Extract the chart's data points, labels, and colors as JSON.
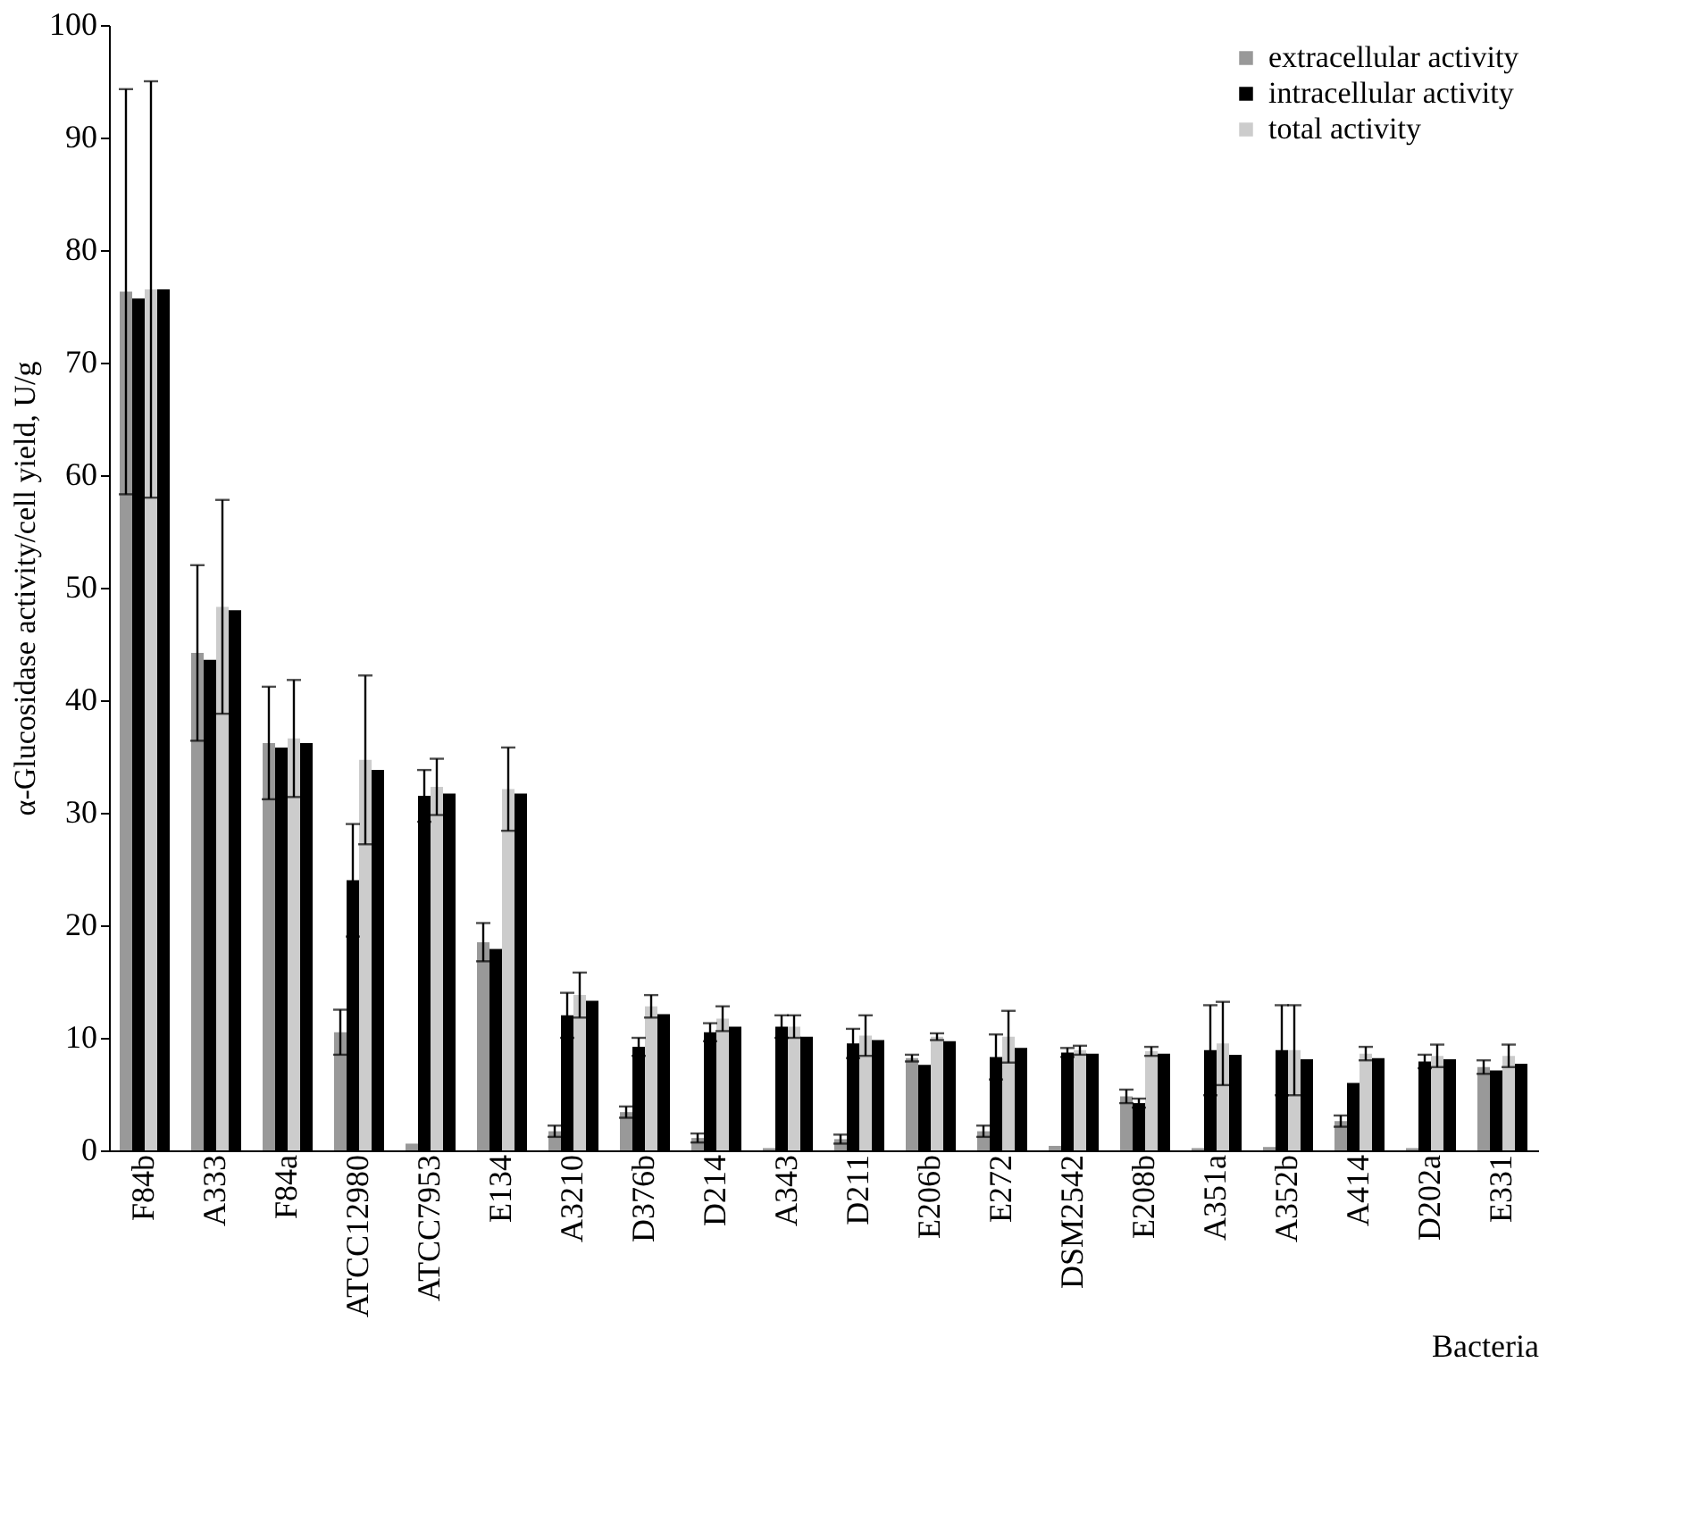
{
  "chart_data": {
    "type": "bar",
    "xlabel": "Bacteria",
    "ylabel": "α-Glucosidase activity/cell yield, U/g",
    "categories": [
      "F84b",
      "A333",
      "F84a",
      "ATCC12980",
      "ATCC7953",
      "E134",
      "A3210",
      "D376b",
      "D214",
      "A343",
      "D211",
      "E206b",
      "E272",
      "DSM2542",
      "E208b",
      "A351a",
      "A352b",
      "A414",
      "D202a",
      "E331"
    ],
    "series": [
      {
        "name": "extracellular activity",
        "color": "#999999",
        "values": [
          76.3,
          44.2,
          36.2,
          10.5,
          0.6,
          18.5,
          1.7,
          3.4,
          1.1,
          0.2,
          1.0,
          8.2,
          1.7,
          0.4,
          4.8,
          0.2,
          0.3,
          2.6,
          0.2,
          7.4
        ],
        "errors": [
          18,
          7.8,
          5,
          2,
          null,
          1.7,
          0.5,
          0.5,
          0.4,
          null,
          0.4,
          0.3,
          0.5,
          null,
          0.6,
          null,
          null,
          0.5,
          null,
          0.6
        ]
      },
      {
        "name": "intracellular activity",
        "color": "#000000",
        "values": [
          75.7,
          43.6,
          35.8,
          24,
          31.5,
          17.9,
          12,
          9.2,
          10.5,
          11,
          9.5,
          7.6,
          8.3,
          8.7,
          4.2,
          8.9,
          8.9,
          6.0,
          7.9,
          7.1
        ],
        "errors": [
          null,
          null,
          null,
          5,
          2.3,
          null,
          2,
          0.8,
          0.8,
          1,
          1.3,
          null,
          2,
          0.4,
          0.4,
          4,
          4,
          null,
          0.6,
          null
        ]
      },
      {
        "name": "total activity",
        "color": "#cccccc",
        "values": [
          76.5,
          48.3,
          36.6,
          34.7,
          32.3,
          32.1,
          13.8,
          12.8,
          11.7,
          11,
          10.2,
          10.1,
          10.1,
          8.9,
          8.8,
          9.5,
          8.9,
          8.6,
          8.4,
          8.4
        ],
        "errors": [
          18.5,
          9.5,
          5.2,
          7.5,
          2.5,
          3.7,
          2,
          1,
          1.1,
          1,
          1.8,
          0.3,
          2.3,
          0.4,
          0.4,
          3.7,
          4,
          0.6,
          1,
          1
        ]
      },
      {
        "color": "#000000",
        "values": [
          76.5,
          48.0,
          36.2,
          33.8,
          31.7,
          31.7,
          13.3,
          12.1,
          11.0,
          10.1,
          9.8,
          9.7,
          9.1,
          8.6,
          8.6,
          8.5,
          8.1,
          8.2,
          8.1,
          7.7
        ]
      }
    ],
    "ylim": [
      0,
      100
    ],
    "yticks": [
      0,
      10,
      20,
      30,
      40,
      50,
      60,
      70,
      80,
      90,
      100
    ],
    "legend": "top right"
  }
}
